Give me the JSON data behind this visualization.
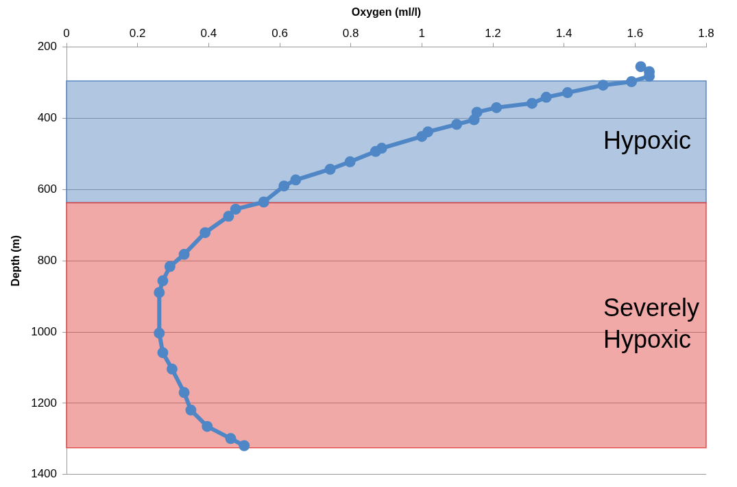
{
  "chart_data": {
    "type": "line",
    "xlabel": "Oxygen (ml/l)",
    "ylabel": "Depth (m)",
    "xlim": [
      0,
      1.8
    ],
    "xticks": [
      0,
      0.2,
      0.4,
      0.6,
      0.8,
      1,
      1.2,
      1.4,
      1.6,
      1.8
    ],
    "ylim": [
      1400,
      200
    ],
    "yticks": [
      200,
      400,
      600,
      800,
      1000,
      1200,
      1400
    ],
    "grid": "y",
    "marker": "circle",
    "series": [
      {
        "color": "#4f86c6",
        "x": [
          1.616,
          1.64,
          1.64,
          1.59,
          1.51,
          1.41,
          1.35,
          1.31,
          1.21,
          1.155,
          1.147,
          1.098,
          1.017,
          1.0,
          0.887,
          0.87,
          0.798,
          0.742,
          0.645,
          0.612,
          0.555,
          0.476,
          0.456,
          0.39,
          0.331,
          0.291,
          0.271,
          0.261,
          0.261,
          0.271,
          0.297,
          0.331,
          0.35,
          0.396,
          0.462,
          0.5
        ],
        "values": [
          255,
          269,
          282,
          297,
          307,
          328,
          341,
          358,
          370,
          383,
          404,
          417,
          438,
          451,
          484,
          493,
          522,
          543,
          573,
          590,
          635,
          655,
          675,
          721,
          782,
          816,
          856,
          889,
          1003,
          1058,
          1104,
          1170,
          1219,
          1265,
          1299,
          1319
        ]
      }
    ],
    "bands": [
      {
        "axis": "y",
        "from": 295,
        "to": 637,
        "label": "Hypoxic",
        "color": "#4f81bd"
      },
      {
        "axis": "y",
        "from": 637,
        "to": 1325,
        "label": "Severely Hypoxic",
        "color": "#e0403f"
      }
    ]
  }
}
